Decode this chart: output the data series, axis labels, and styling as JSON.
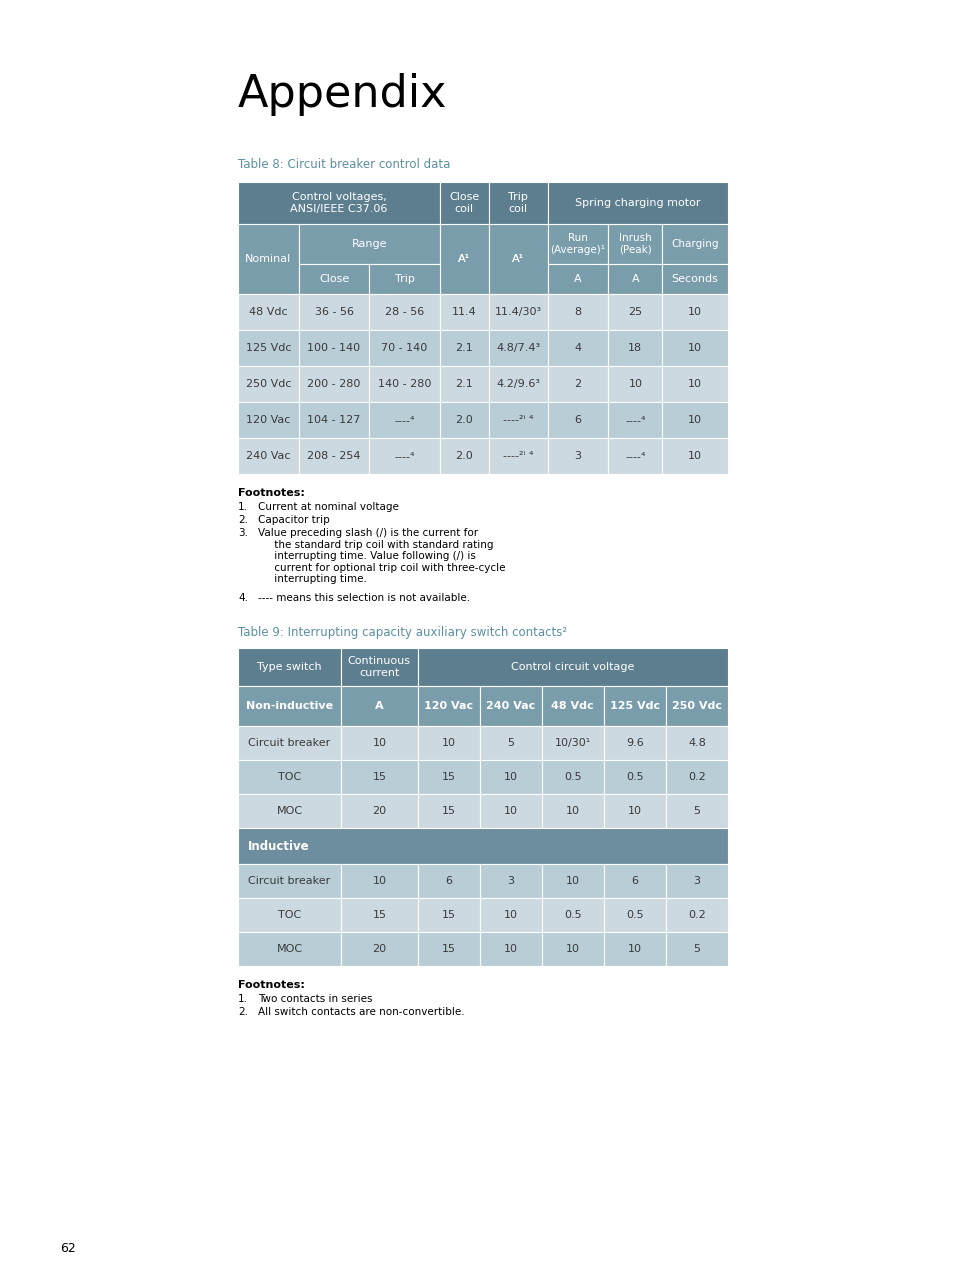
{
  "title": "Appendix",
  "page_number": "62",
  "table8_caption": "Table 8: Circuit breaker control data",
  "table9_caption": "Table 9: Interrupting capacity auxiliary switch contacts²",
  "header_color": "#5c7e8e",
  "subheader_color": "#7a9dac",
  "row_light": "#ccd9e0",
  "row_medium": "#b8cdd6",
  "inductive_row_color": "#6d8e9e",
  "dark_text": "#3a3a3a",
  "caption_color": "#5b8fa0",
  "table8_data": [
    [
      "48 Vdc",
      "36 - 56",
      "28 - 56",
      "11.4",
      "11.4/30³",
      "8",
      "25",
      "10"
    ],
    [
      "125 Vdc",
      "100 - 140",
      "70 - 140",
      "2.1",
      "4.8/7.4³",
      "4",
      "18",
      "10"
    ],
    [
      "250 Vdc",
      "200 - 280",
      "140 - 280",
      "2.1",
      "4.2/9.6³",
      "2",
      "10",
      "10"
    ],
    [
      "120 Vac",
      "104 - 127",
      "----⁴",
      "2.0",
      "----²ⁱ ⁴",
      "6",
      "----⁴",
      "10"
    ],
    [
      "240 Vac",
      "208 - 254",
      "----⁴",
      "2.0",
      "----²ⁱ ⁴",
      "3",
      "----⁴",
      "10"
    ]
  ],
  "table9_data_noninductive": [
    [
      "Circuit breaker",
      "10",
      "10",
      "5",
      "10/30¹",
      "9.6",
      "4.8"
    ],
    [
      "TOC",
      "15",
      "15",
      "10",
      "0.5",
      "0.5",
      "0.2"
    ],
    [
      "MOC",
      "20",
      "15",
      "10",
      "10",
      "10",
      "5"
    ]
  ],
  "table9_data_inductive": [
    [
      "Circuit breaker",
      "10",
      "6",
      "3",
      "10",
      "6",
      "3"
    ],
    [
      "TOC",
      "15",
      "15",
      "10",
      "0.5",
      "0.5",
      "0.2"
    ],
    [
      "MOC",
      "20",
      "15",
      "10",
      "10",
      "10",
      "5"
    ]
  ]
}
